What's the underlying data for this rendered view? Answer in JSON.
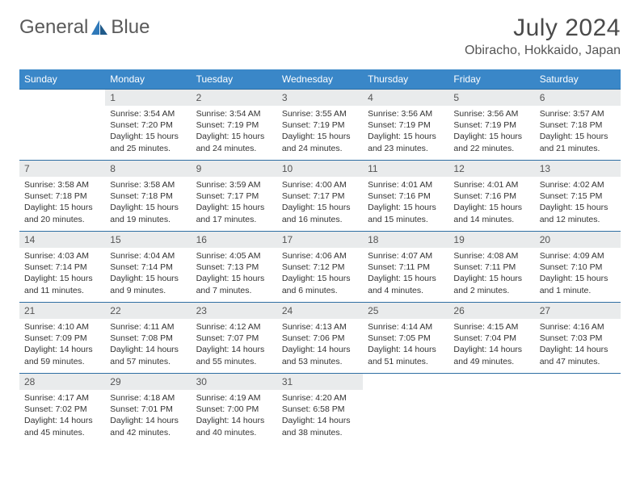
{
  "logo": {
    "word1": "General",
    "word2": "Blue"
  },
  "title": "July 2024",
  "location": "Obiracho, Hokkaido, Japan",
  "colors": {
    "header_bg": "#3a87c8",
    "daynum_bg": "#e9ebec",
    "rule": "#2f6fa3",
    "logo_blue": "#2f79b9"
  },
  "weekdays": [
    "Sunday",
    "Monday",
    "Tuesday",
    "Wednesday",
    "Thursday",
    "Friday",
    "Saturday"
  ],
  "weeks": [
    [
      null,
      {
        "n": "1",
        "r": "3:54 AM",
        "s": "7:20 PM",
        "d": "15 hours and 25 minutes."
      },
      {
        "n": "2",
        "r": "3:54 AM",
        "s": "7:19 PM",
        "d": "15 hours and 24 minutes."
      },
      {
        "n": "3",
        "r": "3:55 AM",
        "s": "7:19 PM",
        "d": "15 hours and 24 minutes."
      },
      {
        "n": "4",
        "r": "3:56 AM",
        "s": "7:19 PM",
        "d": "15 hours and 23 minutes."
      },
      {
        "n": "5",
        "r": "3:56 AM",
        "s": "7:19 PM",
        "d": "15 hours and 22 minutes."
      },
      {
        "n": "6",
        "r": "3:57 AM",
        "s": "7:18 PM",
        "d": "15 hours and 21 minutes."
      }
    ],
    [
      {
        "n": "7",
        "r": "3:58 AM",
        "s": "7:18 PM",
        "d": "15 hours and 20 minutes."
      },
      {
        "n": "8",
        "r": "3:58 AM",
        "s": "7:18 PM",
        "d": "15 hours and 19 minutes."
      },
      {
        "n": "9",
        "r": "3:59 AM",
        "s": "7:17 PM",
        "d": "15 hours and 17 minutes."
      },
      {
        "n": "10",
        "r": "4:00 AM",
        "s": "7:17 PM",
        "d": "15 hours and 16 minutes."
      },
      {
        "n": "11",
        "r": "4:01 AM",
        "s": "7:16 PM",
        "d": "15 hours and 15 minutes."
      },
      {
        "n": "12",
        "r": "4:01 AM",
        "s": "7:16 PM",
        "d": "15 hours and 14 minutes."
      },
      {
        "n": "13",
        "r": "4:02 AM",
        "s": "7:15 PM",
        "d": "15 hours and 12 minutes."
      }
    ],
    [
      {
        "n": "14",
        "r": "4:03 AM",
        "s": "7:14 PM",
        "d": "15 hours and 11 minutes."
      },
      {
        "n": "15",
        "r": "4:04 AM",
        "s": "7:14 PM",
        "d": "15 hours and 9 minutes."
      },
      {
        "n": "16",
        "r": "4:05 AM",
        "s": "7:13 PM",
        "d": "15 hours and 7 minutes."
      },
      {
        "n": "17",
        "r": "4:06 AM",
        "s": "7:12 PM",
        "d": "15 hours and 6 minutes."
      },
      {
        "n": "18",
        "r": "4:07 AM",
        "s": "7:11 PM",
        "d": "15 hours and 4 minutes."
      },
      {
        "n": "19",
        "r": "4:08 AM",
        "s": "7:11 PM",
        "d": "15 hours and 2 minutes."
      },
      {
        "n": "20",
        "r": "4:09 AM",
        "s": "7:10 PM",
        "d": "15 hours and 1 minute."
      }
    ],
    [
      {
        "n": "21",
        "r": "4:10 AM",
        "s": "7:09 PM",
        "d": "14 hours and 59 minutes."
      },
      {
        "n": "22",
        "r": "4:11 AM",
        "s": "7:08 PM",
        "d": "14 hours and 57 minutes."
      },
      {
        "n": "23",
        "r": "4:12 AM",
        "s": "7:07 PM",
        "d": "14 hours and 55 minutes."
      },
      {
        "n": "24",
        "r": "4:13 AM",
        "s": "7:06 PM",
        "d": "14 hours and 53 minutes."
      },
      {
        "n": "25",
        "r": "4:14 AM",
        "s": "7:05 PM",
        "d": "14 hours and 51 minutes."
      },
      {
        "n": "26",
        "r": "4:15 AM",
        "s": "7:04 PM",
        "d": "14 hours and 49 minutes."
      },
      {
        "n": "27",
        "r": "4:16 AM",
        "s": "7:03 PM",
        "d": "14 hours and 47 minutes."
      }
    ],
    [
      {
        "n": "28",
        "r": "4:17 AM",
        "s": "7:02 PM",
        "d": "14 hours and 45 minutes."
      },
      {
        "n": "29",
        "r": "4:18 AM",
        "s": "7:01 PM",
        "d": "14 hours and 42 minutes."
      },
      {
        "n": "30",
        "r": "4:19 AM",
        "s": "7:00 PM",
        "d": "14 hours and 40 minutes."
      },
      {
        "n": "31",
        "r": "4:20 AM",
        "s": "6:58 PM",
        "d": "14 hours and 38 minutes."
      },
      null,
      null,
      null
    ]
  ],
  "labels": {
    "sunrise": "Sunrise:",
    "sunset": "Sunset:",
    "daylight": "Daylight:"
  }
}
